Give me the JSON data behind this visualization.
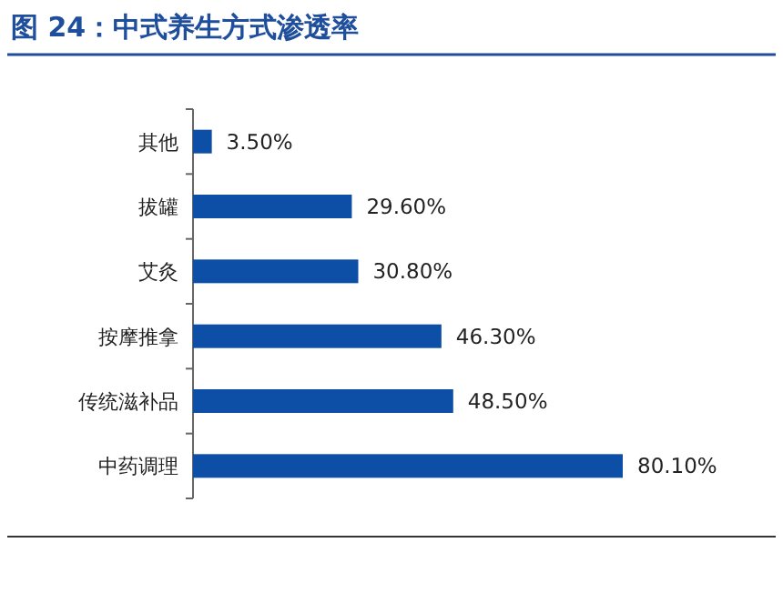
{
  "chart_data": {
    "type": "bar",
    "orientation": "horizontal",
    "title": "图 24：中式养生方式渗透率",
    "categories": [
      "其他",
      "拔罐",
      "艾灸",
      "按摩推拿",
      "传统滋补品",
      "中药调理"
    ],
    "values": [
      3.5,
      29.6,
      30.8,
      46.3,
      48.5,
      80.1
    ],
    "value_labels": [
      "3.50%",
      "29.60%",
      "30.80%",
      "46.30%",
      "48.50%",
      "80.10%"
    ],
    "color": "#0d4ea6"
  }
}
